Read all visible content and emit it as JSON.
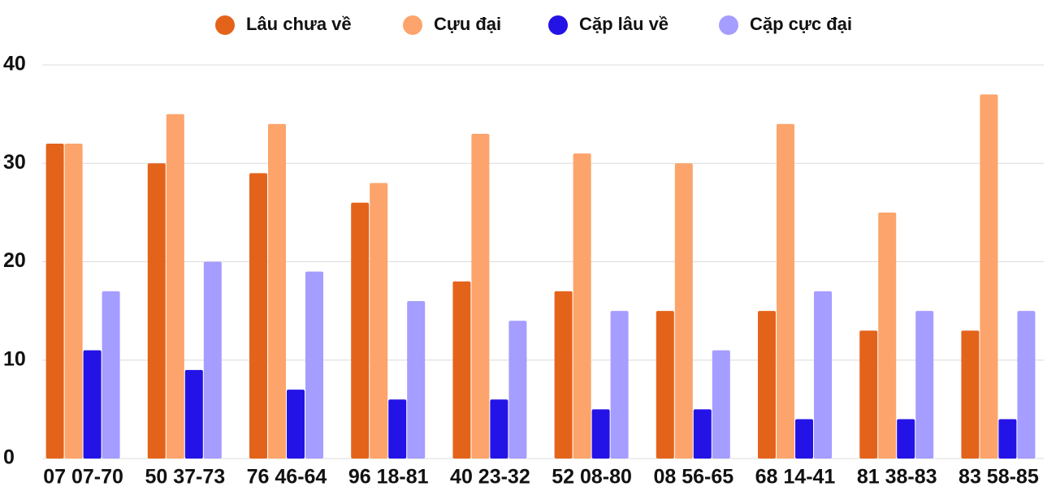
{
  "chart_data": {
    "type": "bar",
    "categories": [
      "07 07-70",
      "50 37-73",
      "76 46-64",
      "96 18-81",
      "40 23-32",
      "52 08-80",
      "08 56-65",
      "68 14-41",
      "81 38-83",
      "83 58-85"
    ],
    "series": [
      {
        "name": "Lâu chưa về",
        "color": "#e4631b",
        "values": [
          32,
          30,
          29,
          26,
          18,
          17,
          15,
          15,
          13,
          13
        ]
      },
      {
        "name": "Cựu đại",
        "color": "#fca46b",
        "values": [
          32,
          35,
          34,
          28,
          33,
          31,
          30,
          34,
          25,
          37
        ]
      },
      {
        "name": "Cặp lâu về",
        "color": "#2413e6",
        "values": [
          11,
          9,
          7,
          6,
          6,
          5,
          5,
          4,
          4,
          4
        ]
      },
      {
        "name": "Cặp cực đại",
        "color": "#a59dff",
        "values": [
          17,
          20,
          19,
          16,
          14,
          15,
          11,
          17,
          15,
          15
        ]
      }
    ],
    "ylim": [
      0,
      40
    ],
    "yticks": [
      0,
      10,
      20,
      30,
      40
    ],
    "grid": true,
    "legend": "top"
  }
}
